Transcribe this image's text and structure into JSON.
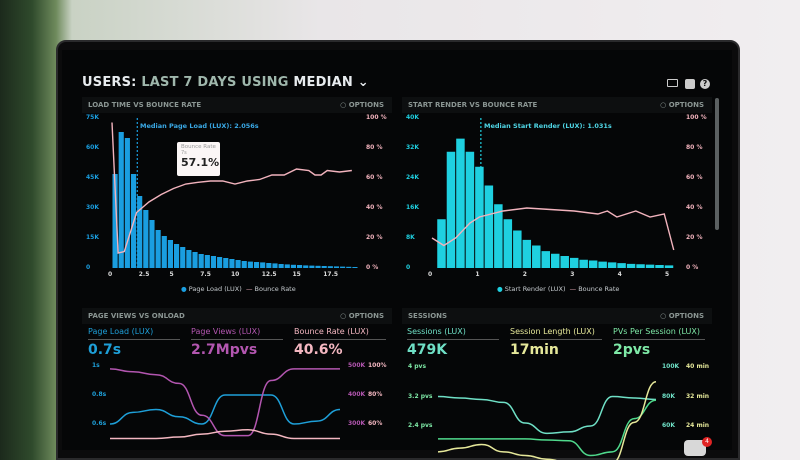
{
  "header": {
    "prefix": "USERS:",
    "range": "LAST 7 DAYS",
    "using": "USING",
    "stat": "MEDIAN",
    "icons": [
      "monitor-icon",
      "external-link-icon",
      "help-icon"
    ]
  },
  "options_label": "OPTIONS",
  "panels": [
    {
      "title": "LOAD TIME VS BOUNCE RATE",
      "annotation": "Median Page Load (LUX): 2.056s",
      "tooltip": {
        "label": "Bounce Rate",
        "sub": "7s",
        "value": "57.1%"
      },
      "legend": [
        "Page Load (LUX)",
        "Bounce Rate"
      ]
    },
    {
      "title": "START RENDER VS BOUNCE RATE",
      "annotation": "Median Start Render (LUX): 1.031s",
      "legend": [
        "Start Render (LUX)",
        "Bounce Rate"
      ]
    },
    {
      "title": "PAGE VIEWS VS ONLOAD",
      "metrics": [
        {
          "label": "Page Load (LUX)",
          "value": "0.7s",
          "color": "#1e9fd8"
        },
        {
          "label": "Page Views (LUX)",
          "value": "2.7Mpvs",
          "color": "#b356b0"
        },
        {
          "label": "Bounce Rate (LUX)",
          "value": "40.6%",
          "color": "#f4b7c1"
        }
      ]
    },
    {
      "title": "SESSIONS",
      "metrics": [
        {
          "label": "Sessions (LUX)",
          "value": "479K",
          "color": "#6fe0c6"
        },
        {
          "label": "Session Length (LUX)",
          "value": "17min",
          "color": "#e6e89a"
        },
        {
          "label": "PVs Per Session (LUX)",
          "value": "2pvs",
          "color": "#7ee8a6"
        }
      ]
    }
  ],
  "notification_count": "4",
  "chart_data": [
    {
      "type": "bar+line",
      "title": "LOAD TIME VS BOUNCE RATE",
      "xticks": [
        "0",
        "2.5",
        "5",
        "7.5",
        "10",
        "12.5",
        "15",
        "17.5"
      ],
      "xtick_values": [
        0,
        2.5,
        5,
        7.5,
        10,
        12.5,
        15,
        17.5
      ],
      "yticks_left": [
        "0",
        "15K",
        "30K",
        "45K",
        "60K",
        "75K"
      ],
      "ylim_left": [
        0,
        75000
      ],
      "yticks_right": [
        "0 %",
        "20 %",
        "40 %",
        "60 %",
        "80 %",
        "100 %"
      ],
      "ylim_right": [
        0,
        100
      ],
      "xlim": [
        0,
        20
      ],
      "bar_width": 0.5,
      "median_x": 2.056,
      "series": [
        {
          "name": "Page Load (LUX)",
          "color": "#1a9ee0",
          "x_start": 0.25,
          "values": [
            47000,
            68000,
            65000,
            47000,
            36000,
            29000,
            24000,
            19000,
            16000,
            14000,
            12000,
            10500,
            9000,
            8000,
            7000,
            6500,
            6000,
            5500,
            5000,
            4500,
            4000,
            3500,
            3200,
            3000,
            2800,
            2500,
            2300,
            2000,
            1800,
            1600,
            1500,
            1300,
            1200,
            1100,
            1000,
            900,
            800,
            700,
            600,
            500
          ]
        },
        {
          "name": "Bounce Rate",
          "color": "#f2b3bd",
          "points": [
            [
              0,
              97
            ],
            [
              0.5,
              10
            ],
            [
              1,
              11
            ],
            [
              1.5,
              24
            ],
            [
              2,
              37
            ],
            [
              3,
              44
            ],
            [
              4,
              49
            ],
            [
              5,
              53
            ],
            [
              6,
              56
            ],
            [
              7,
              57.1
            ],
            [
              8,
              58
            ],
            [
              9,
              58
            ],
            [
              10,
              56
            ],
            [
              11,
              58
            ],
            [
              12,
              59
            ],
            [
              13,
              62
            ],
            [
              14,
              62
            ],
            [
              15,
              66
            ],
            [
              16,
              65
            ],
            [
              16.5,
              62
            ],
            [
              17,
              62
            ],
            [
              17.5,
              65
            ],
            [
              18.5,
              64
            ],
            [
              19.5,
              65
            ]
          ]
        }
      ]
    },
    {
      "type": "bar+line",
      "title": "START RENDER VS BOUNCE RATE",
      "xticks": [
        "0",
        "1",
        "2",
        "3",
        "4",
        "5"
      ],
      "xtick_values": [
        0,
        1,
        2,
        3,
        4,
        5
      ],
      "yticks_left": [
        "0",
        "8K",
        "16K",
        "24K",
        "32K",
        "40K"
      ],
      "ylim_left": [
        0,
        40000
      ],
      "yticks_right": [
        "0 %",
        "20 %",
        "40 %",
        "60 %",
        "80 %",
        "100 %"
      ],
      "ylim_right": [
        0,
        100
      ],
      "xlim": [
        0,
        5
      ],
      "bar_width": 0.2,
      "median_x": 1.031,
      "series": [
        {
          "name": "Start Render (LUX)",
          "color": "#1fd0e0",
          "x_start": 0.2,
          "values": [
            13000,
            31000,
            34500,
            31000,
            27000,
            22000,
            17000,
            13000,
            10000,
            7500,
            6000,
            4500,
            3800,
            3200,
            2700,
            2200,
            2000,
            1700,
            1500,
            1300,
            1100,
            1000,
            900,
            800,
            700
          ]
        },
        {
          "name": "Bounce Rate",
          "color": "#f2b3bd",
          "points": [
            [
              0,
              20
            ],
            [
              0.25,
              15
            ],
            [
              0.5,
              20
            ],
            [
              0.8,
              30
            ],
            [
              1,
              34
            ],
            [
              1.5,
              38
            ],
            [
              2,
              40
            ],
            [
              2.5,
              39
            ],
            [
              3,
              38
            ],
            [
              3.5,
              36
            ],
            [
              3.7,
              38
            ],
            [
              3.9,
              34
            ],
            [
              4.3,
              38
            ],
            [
              4.6,
              34
            ],
            [
              4.9,
              36
            ],
            [
              5.1,
              12
            ]
          ]
        }
      ]
    },
    {
      "type": "line",
      "title": "PAGE VIEWS VS ONLOAD",
      "yticks_left": [
        "1s",
        "0.8s",
        "0.6s"
      ],
      "yticks_right_a": [
        "500K",
        "400K",
        "300K"
      ],
      "yticks_right_b": [
        "100%",
        "80%",
        "60%"
      ],
      "series": [
        {
          "name": "Page Load (LUX)",
          "color": "#1e9fd8",
          "axis": "left",
          "range": [
            0.6,
            1
          ],
          "values": [
            0.6,
            0.68,
            0.7,
            0.65,
            0.6,
            0.8,
            0.8,
            0.8,
            0.6,
            0.62,
            0.7
          ]
        },
        {
          "name": "Page Views (LUX)",
          "color": "#b356b0",
          "axis": "right_a",
          "range": [
            300000,
            500000
          ],
          "values": [
            490000,
            480000,
            470000,
            440000,
            330000,
            260000,
            260000,
            450000,
            490000,
            490000,
            490000
          ]
        },
        {
          "name": "Bounce Rate (LUX)",
          "color": "#f4b7c1",
          "axis": "right_b",
          "range": [
            60,
            100
          ],
          "values": [
            50,
            50,
            50,
            51,
            53,
            55,
            56,
            53,
            50,
            50,
            50
          ]
        }
      ]
    },
    {
      "type": "line",
      "title": "SESSIONS",
      "yticks_left": [
        "4 pvs",
        "3.2 pvs",
        "2.4 pvs"
      ],
      "yticks_right_a": [
        "100K",
        "80K",
        "60K"
      ],
      "yticks_right_b": [
        "40 min",
        "32 min",
        "24 min"
      ],
      "series": [
        {
          "name": "Sessions (LUX)",
          "color": "#6fe0c6",
          "axis": "right_a",
          "range": [
            60000,
            100000
          ],
          "values": [
            80000,
            79000,
            78000,
            76000,
            62000,
            55000,
            56000,
            60000,
            80000,
            79000,
            78000
          ]
        },
        {
          "name": "PVs Per Session (LUX)",
          "color": "#4fd98c",
          "axis": "left",
          "range": [
            2.4,
            4
          ],
          "values": [
            2.05,
            2.05,
            2.05,
            2.05,
            2.05,
            2.02,
            2.0,
            1.6,
            1.7,
            2.6,
            3.1
          ]
        },
        {
          "name": "Session Length (LUX)",
          "color": "#e6e89a",
          "axis": "right_b",
          "range": [
            24,
            40
          ],
          "values": [
            17,
            18,
            19,
            17,
            16,
            15,
            14,
            13,
            14,
            25,
            36
          ]
        }
      ]
    }
  ]
}
